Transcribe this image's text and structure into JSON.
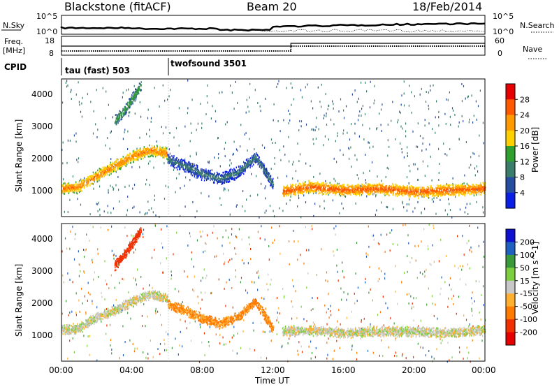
{
  "header": {
    "station": "Blackstone (fitACF)",
    "beam": "Beam 20",
    "date": "18/Feb/2014"
  },
  "noise_panel": {
    "left_label": "N.Sky",
    "right_label": "N.Search",
    "left_ticks": [
      "10^5",
      "10^0"
    ],
    "right_ticks": [
      "10^5",
      "10^0"
    ]
  },
  "freq_panel": {
    "left_label_1": "Freq.",
    "left_label_2": "[MHz]",
    "right_label": "Nave",
    "left_ticks": [
      "18",
      "8"
    ],
    "right_ticks": [
      "60",
      "0"
    ]
  },
  "cpid": {
    "label": "CPID",
    "segments": [
      {
        "name": "tau (fast) 503",
        "start_hour": 0,
        "end_hour": 6
      },
      {
        "name": "twofsound 3501",
        "start_hour": 6,
        "end_hour": 24
      }
    ]
  },
  "chart_data": [
    {
      "type": "heatmap",
      "quantity": "Power",
      "unit": "[dB]",
      "colorbar_ticks": [
        "28",
        "24",
        "20",
        "16",
        "12",
        "8",
        "4"
      ],
      "colorbar_colors": [
        "#e60000",
        "#ff5a00",
        "#ff9a00",
        "#ffd000",
        "#2fa02f",
        "#3a7d6a",
        "#274da0",
        "#0a1ee6"
      ],
      "ylabel": "Slant Range [km]",
      "yticks": [
        "4000",
        "3000",
        "2000",
        "1000"
      ],
      "ylim": [
        200,
        4500
      ],
      "xlim_hours": [
        0,
        24
      ],
      "bands": [
        {
          "hours": [
            0,
            1,
            2,
            3,
            4,
            5,
            6
          ],
          "range_km": [
            1100,
            1150,
            1500,
            1800,
            2100,
            2300,
            2200
          ],
          "power_db": 24
        },
        {
          "hours": [
            6,
            7,
            8,
            9,
            10,
            11,
            12
          ],
          "range_km": [
            2000,
            1800,
            1550,
            1400,
            1600,
            2100,
            1200
          ],
          "power_db": 10
        },
        {
          "hours": [
            12.5,
            14,
            16,
            18,
            20,
            22,
            24
          ],
          "range_km": [
            1000,
            1150,
            1050,
            1100,
            1000,
            1050,
            1100
          ],
          "power_db": 26
        },
        {
          "hours": [
            3,
            3.5,
            4,
            4.5
          ],
          "range_km": [
            3200,
            3500,
            3900,
            4300
          ],
          "power_db": 14
        }
      ]
    },
    {
      "type": "heatmap",
      "quantity": "Velocity",
      "unit": "[m s^-1]",
      "colorbar_ticks": [
        "200",
        "100",
        "50",
        "15",
        "-15",
        "-50",
        "-100",
        "-200"
      ],
      "colorbar_colors": [
        "#1010d0",
        "#2060c0",
        "#3a9a3a",
        "#7cd040",
        "#c8c8c8",
        "#ffb030",
        "#ff7a00",
        "#f03000",
        "#e60000"
      ],
      "ylabel": "Slant Range [km]",
      "yticks": [
        "4000",
        "3000",
        "2000",
        "1000"
      ],
      "ylim": [
        200,
        4500
      ],
      "xlim_hours": [
        0,
        24
      ],
      "bands": [
        {
          "hours": [
            0,
            1,
            2,
            3,
            4,
            5,
            6
          ],
          "range_km": [
            1200,
            1250,
            1600,
            1800,
            2100,
            2300,
            2200
          ],
          "velocity": 0
        },
        {
          "hours": [
            6,
            7,
            8,
            9,
            10,
            11,
            12
          ],
          "range_km": [
            2000,
            1800,
            1550,
            1400,
            1600,
            2100,
            1200
          ],
          "velocity": -60
        },
        {
          "hours": [
            12.5,
            14,
            16,
            18,
            20,
            22,
            24
          ],
          "range_km": [
            1150,
            1200,
            1100,
            1150,
            1150,
            1100,
            1200
          ],
          "velocity": 0
        },
        {
          "hours": [
            3,
            3.5,
            4,
            4.5
          ],
          "range_km": [
            3200,
            3500,
            3900,
            4300
          ],
          "velocity": -150
        }
      ]
    }
  ],
  "x_axis": {
    "tick_labels": [
      "00:00",
      "04:00",
      "08:00",
      "12:00",
      "16:00",
      "20:00",
      "00:00"
    ],
    "label": "Time UT"
  }
}
